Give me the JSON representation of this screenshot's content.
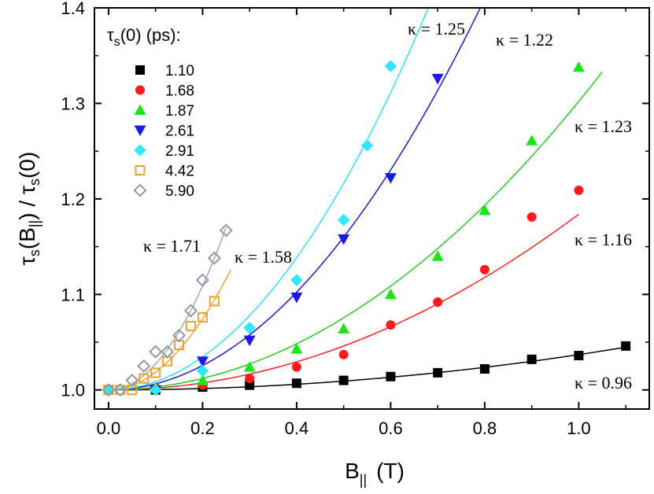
{
  "chart_data": {
    "type": "scatter",
    "xlabel_main": "B",
    "xlabel_sub": "||",
    "xlabel_unit": "(T)",
    "ylabel_parts": {
      "t1": "τ",
      "s1": "s",
      "b": "(B",
      "bsub": "||",
      "mid": ") / τ",
      "s2": "s",
      "end": "(0)"
    },
    "xlim": [
      -0.03,
      1.15
    ],
    "ylim": [
      0.98,
      1.4
    ],
    "x_ticks": [
      "0.0",
      "0.2",
      "0.4",
      "0.6",
      "0.8",
      "1.0"
    ],
    "x_tick_values": [
      0.0,
      0.2,
      0.4,
      0.6,
      0.8,
      1.0
    ],
    "y_ticks": [
      "1.0",
      "1.1",
      "1.2",
      "1.3",
      "1.4"
    ],
    "y_tick_values": [
      1.0,
      1.1,
      1.2,
      1.3,
      1.4
    ],
    "legend_title": {
      "t": "τ",
      "s": "s",
      "rest": "(0)  (ps):"
    },
    "legend_position": "top-left",
    "series": [
      {
        "name": "1.10",
        "marker": "square",
        "filled": true,
        "color": "#000000",
        "line_color": "#000000",
        "kappa": "κ = 0.96",
        "x": [
          0.0,
          0.1,
          0.2,
          0.3,
          0.4,
          0.5,
          0.6,
          0.7,
          0.8,
          0.9,
          1.0,
          1.1
        ],
        "y": [
          1.0,
          1.0,
          1.003,
          1.005,
          1.007,
          1.01,
          1.014,
          1.018,
          1.022,
          1.032,
          1.036,
          1.046
        ],
        "fit_x_max": 1.1,
        "fit_coef": 0.037
      },
      {
        "name": "1.68",
        "marker": "circle",
        "filled": true,
        "color": "#ff1a1a",
        "line_color": "#ff2020",
        "kappa": "κ = 1.16",
        "x": [
          0.0,
          0.1,
          0.2,
          0.3,
          0.4,
          0.5,
          0.6,
          0.7,
          0.8,
          0.9,
          1.0
        ],
        "y": [
          1.0,
          1.002,
          1.005,
          1.012,
          1.024,
          1.037,
          1.068,
          1.092,
          1.126,
          1.181,
          1.209
        ],
        "fit_x_max": 1.0,
        "fit_coef": 0.184
      },
      {
        "name": "1.87",
        "marker": "triangle-up",
        "filled": true,
        "color": "#19e619",
        "line_color": "#22cc22",
        "kappa": "κ = 1.23",
        "x": [
          0.0,
          0.1,
          0.2,
          0.3,
          0.4,
          0.5,
          0.6,
          0.7,
          0.8,
          0.9,
          1.0
        ],
        "y": [
          1.0,
          1.002,
          1.01,
          1.024,
          1.043,
          1.064,
          1.1,
          1.14,
          1.188,
          1.261,
          1.338
        ],
        "fit_x_max": 1.05,
        "fit_coef": 0.302
      },
      {
        "name": "2.61",
        "marker": "triangle-down",
        "filled": true,
        "color": "#1a1ae6",
        "line_color": "#1a1acc",
        "kappa": "κ = 1.22",
        "x": [
          0.0,
          0.1,
          0.2,
          0.3,
          0.4,
          0.5,
          0.6,
          0.7
        ],
        "y": [
          1.0,
          1.0,
          1.03,
          1.052,
          1.097,
          1.158,
          1.222,
          1.326
        ],
        "fit_x_max": 0.79,
        "fit_coef": 0.64
      },
      {
        "name": "2.91",
        "marker": "diamond",
        "filled": true,
        "color": "#33e6ff",
        "line_color": "#33ddee",
        "kappa": "κ = 1.25",
        "x": [
          0.0,
          0.1,
          0.2,
          0.3,
          0.4,
          0.5,
          0.55,
          0.6
        ],
        "y": [
          1.0,
          1.0,
          1.02,
          1.065,
          1.115,
          1.178,
          1.256,
          1.339
        ],
        "fit_x_max": 0.68,
        "fit_coef": 0.865
      },
      {
        "name": "4.42",
        "marker": "square",
        "filled": false,
        "color": "#f0a030",
        "line_color": "#f0a030",
        "kappa": "κ = 1.58",
        "x": [
          0.0,
          0.025,
          0.05,
          0.075,
          0.1,
          0.125,
          0.15,
          0.175,
          0.2,
          0.225
        ],
        "y": [
          1.0,
          1.0,
          1.0,
          1.012,
          1.018,
          1.03,
          1.047,
          1.067,
          1.076,
          1.093
        ],
        "fit_x_max": 0.26,
        "fit_coef": 1.86
      },
      {
        "name": "5.90",
        "marker": "diamond",
        "filled": false,
        "color": "#909aa6",
        "line_color": "#a0a8b0",
        "kappa": "κ = 1.71",
        "x": [
          0.0,
          0.025,
          0.05,
          0.075,
          0.1,
          0.125,
          0.15,
          0.175,
          0.2,
          0.225,
          0.25
        ],
        "y": [
          1.0,
          1.0,
          1.01,
          1.025,
          1.04,
          1.04,
          1.057,
          1.083,
          1.115,
          1.138,
          1.167
        ],
        "fit_x_max": 0.25,
        "fit_coef": 2.72
      }
    ]
  }
}
